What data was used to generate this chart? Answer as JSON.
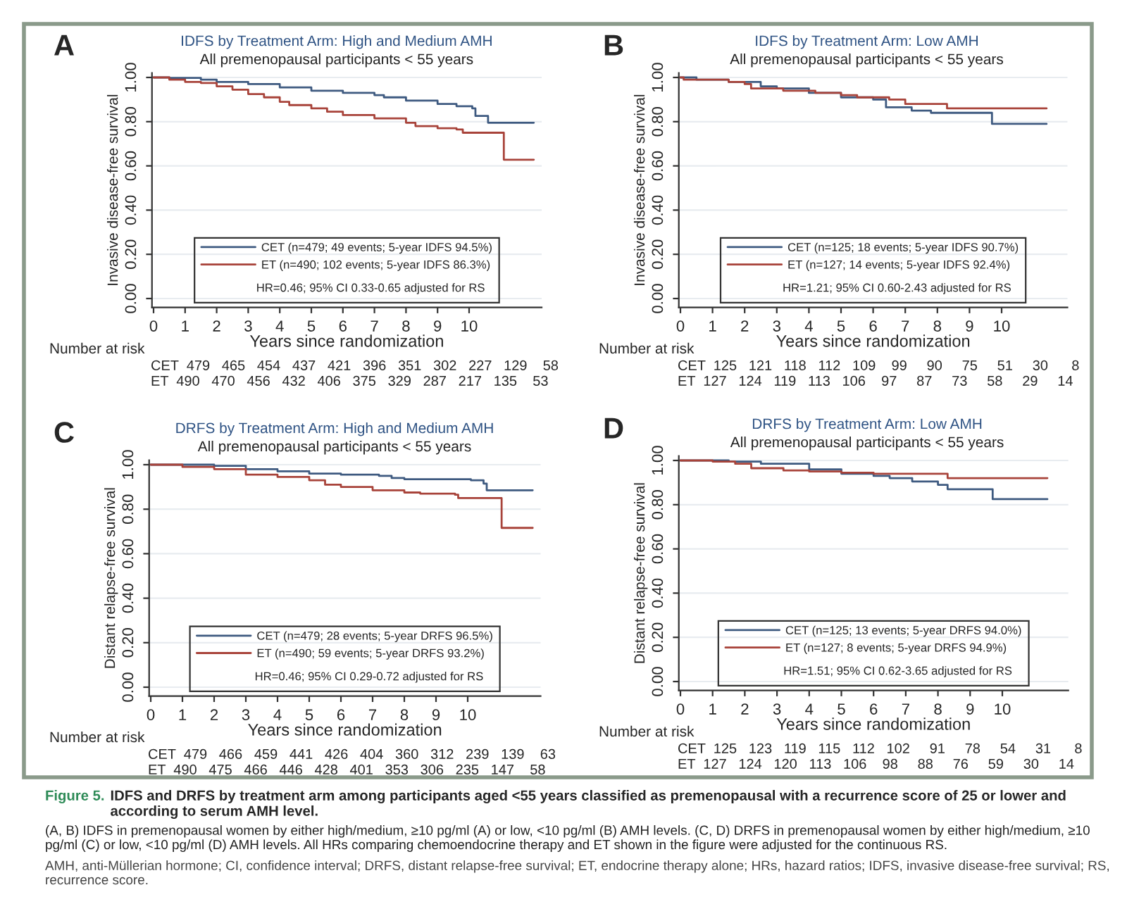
{
  "chart_data": [
    {
      "type": "step",
      "title": "IDFS by Treatment Arm: High and Medium AMH",
      "subtitle": "All premenopausal participants < 55 years",
      "xlabel": "Years since randomization",
      "ylabel": "Invasive disease-free survival",
      "xlim": [
        -0.05,
        12.3
      ],
      "ylim": [
        -0.04,
        1.02
      ],
      "xticks": [
        0,
        1,
        2,
        3,
        4,
        5,
        6,
        7,
        8,
        9,
        10
      ],
      "yticks": [
        {
          "value": 0,
          "label": "0.00"
        },
        {
          "value": 0.2,
          "label": "0.20"
        },
        {
          "value": 0.4,
          "label": "0.40"
        },
        {
          "value": 0.6,
          "label": "0.60"
        },
        {
          "value": 0.8,
          "label": "0.80"
        },
        {
          "value": 1,
          "label": "1.00"
        }
      ],
      "grid": "y",
      "legend": "bottom",
      "series": [
        {
          "name": "CET (n=479; 49 events; 5-year IDFS 94.5%)",
          "color": "#3e5a80",
          "x": [
            0,
            0.5,
            1.5,
            2,
            3,
            4,
            5,
            6,
            7,
            7.3,
            8,
            9,
            9.6,
            10.1,
            10.2,
            10.6,
            12.05
          ],
          "values": [
            1.0,
            0.998,
            0.99,
            0.98,
            0.97,
            0.955,
            0.94,
            0.93,
            0.92,
            0.91,
            0.895,
            0.88,
            0.87,
            0.86,
            0.826,
            0.795,
            0.795
          ]
        },
        {
          "name": "ET (n=490; 102 events; 5-year IDFS 86.3%)",
          "color": "#a8433a",
          "x": [
            0,
            0.5,
            1,
            1.5,
            2,
            2.5,
            3,
            3.5,
            4,
            4.3,
            5,
            5.5,
            6,
            7,
            8,
            8.3,
            9,
            9.6,
            9.8,
            11.1,
            12.05
          ],
          "values": [
            1.0,
            0.99,
            0.98,
            0.975,
            0.96,
            0.945,
            0.925,
            0.91,
            0.89,
            0.875,
            0.86,
            0.845,
            0.83,
            0.815,
            0.795,
            0.78,
            0.77,
            0.765,
            0.75,
            0.628,
            0.628
          ]
        }
      ],
      "annotations": [
        "A",
        "HR=0.46; 95% CI 0.33-0.65 adjusted for RS",
        "Number at risk",
        "CET  479   465   454   437   421   396   351   302   227   129    58",
        "ET  490   470   456   432   406   375   329   287   217   135    53"
      ]
    },
    {
      "type": "step",
      "title": "IDFS by Treatment Arm: Low AMH",
      "subtitle": "All premenopausal participants < 55 years",
      "xlabel": "Years since randomization",
      "ylabel": "Invasive disease-free survival",
      "xlim": [
        -0.05,
        12.05
      ],
      "ylim": [
        -0.04,
        1.02
      ],
      "xticks": [
        0,
        1,
        2,
        3,
        4,
        5,
        6,
        7,
        8,
        9,
        10
      ],
      "yticks": [
        {
          "value": 0,
          "label": "0.00"
        },
        {
          "value": 0.2,
          "label": "0.20"
        },
        {
          "value": 0.4,
          "label": "0.40"
        },
        {
          "value": 0.6,
          "label": "0.60"
        },
        {
          "value": 0.8,
          "label": "0.80"
        },
        {
          "value": 1,
          "label": "1.00"
        }
      ],
      "grid": "y",
      "legend": "bottom",
      "series": [
        {
          "name": "CET (n=125; 18 events; 5-year IDFS 90.7%)",
          "color": "#3e5a80",
          "x": [
            0,
            0.5,
            1.5,
            2.5,
            3,
            4,
            5,
            6,
            6.4,
            7.2,
            7.8,
            9.7,
            11.4
          ],
          "values": [
            1.0,
            0.99,
            0.98,
            0.96,
            0.95,
            0.93,
            0.91,
            0.9,
            0.865,
            0.85,
            0.84,
            0.79,
            0.79
          ]
        },
        {
          "name": "ET (n=127; 14 events; 5-year IDFS 92.4%)",
          "color": "#a8433a",
          "x": [
            0,
            0.1,
            1.5,
            2,
            2.2,
            3.2,
            4.2,
            5,
            5.5,
            6.5,
            7,
            8.3,
            11.4
          ],
          "values": [
            1.0,
            0.99,
            0.98,
            0.97,
            0.95,
            0.94,
            0.93,
            0.92,
            0.91,
            0.9,
            0.88,
            0.86,
            0.86
          ]
        }
      ],
      "annotations": [
        "B",
        "HR=1.21; 95% CI 0.60-2.43 adjusted for RS",
        "Number at risk",
        "CET  125   121   118   112   109    99     90     75     51     30      8",
        "ET  127   124   119   113   106    97     87     73     58     29     14"
      ]
    },
    {
      "type": "step",
      "title": "DRFS by Treatment Arm: High and Medium AMH",
      "subtitle": "All premenopausal participants < 55 years",
      "xlabel": "Years since randomization",
      "ylabel": "Distant relapse-free survival",
      "xlim": [
        -0.05,
        12.3
      ],
      "ylim": [
        -0.04,
        1.02
      ],
      "xticks": [
        0,
        1,
        2,
        3,
        4,
        5,
        6,
        7,
        8,
        9,
        10
      ],
      "yticks": [
        {
          "value": 0,
          "label": "0.00"
        },
        {
          "value": 0.2,
          "label": "0.20"
        },
        {
          "value": 0.4,
          "label": "0.40"
        },
        {
          "value": 0.6,
          "label": "0.60"
        },
        {
          "value": 0.8,
          "label": "0.80"
        },
        {
          "value": 1,
          "label": "1.00"
        }
      ],
      "grid": "y",
      "legend": "bottom",
      "series": [
        {
          "name": "CET (n=479; 28 events; 5-year DRFS 96.5%)",
          "color": "#3e5a80",
          "x": [
            0,
            2,
            3,
            4,
            5,
            6,
            7.2,
            7.6,
            8,
            10.1,
            10.5,
            10.6,
            12.05
          ],
          "values": [
            1.0,
            0.995,
            0.98,
            0.97,
            0.96,
            0.955,
            0.95,
            0.94,
            0.935,
            0.93,
            0.915,
            0.885,
            0.885
          ]
        },
        {
          "name": "ET (n=490; 59 events; 5-year DRFS 93.2%)",
          "color": "#a8433a",
          "x": [
            0,
            1,
            2,
            3,
            4,
            5,
            5.5,
            6,
            7,
            8,
            8.5,
            9.6,
            9.7,
            11.07,
            12.05
          ],
          "values": [
            1.0,
            0.99,
            0.98,
            0.955,
            0.945,
            0.93,
            0.91,
            0.9,
            0.885,
            0.875,
            0.87,
            0.865,
            0.85,
            0.716,
            0.716
          ]
        }
      ],
      "annotations": [
        "C",
        "HR=0.46; 95% CI 0.29-0.72 adjusted for RS",
        "Number at risk",
        "CET  479   466   459   441   426   404   360   312   239   139    63",
        "ET  490   475   466   446   428   401   353   306   235   147    58"
      ]
    },
    {
      "type": "step",
      "title": "DRFS by Treatment Arm: Low AMH",
      "subtitle": "All premenopausal participants < 55 years",
      "xlabel": "Years since randomization",
      "ylabel": "Distant relapse-free survival",
      "xlim": [
        -0.05,
        12.05
      ],
      "ylim": [
        -0.04,
        1.02
      ],
      "xticks": [
        0,
        1,
        2,
        3,
        4,
        5,
        6,
        7,
        8,
        9,
        10
      ],
      "yticks": [
        {
          "value": 0,
          "label": "0.00"
        },
        {
          "value": 0.2,
          "label": "0.20"
        },
        {
          "value": 0.4,
          "label": "0.40"
        },
        {
          "value": 0.6,
          "label": "0.60"
        },
        {
          "value": 0.8,
          "label": "0.80"
        },
        {
          "value": 1,
          "label": "1.00"
        }
      ],
      "grid": "y",
      "legend": "bottom",
      "series": [
        {
          "name": "CET (n=125; 13 events; 5-year DRFS 94.0%)",
          "color": "#3e5a80",
          "x": [
            0,
            1.5,
            2.5,
            4,
            5,
            6,
            6.5,
            7.2,
            8,
            8.3,
            9.7,
            11.4
          ],
          "values": [
            1.0,
            0.995,
            0.985,
            0.96,
            0.94,
            0.93,
            0.92,
            0.905,
            0.89,
            0.87,
            0.825,
            0.825
          ]
        },
        {
          "name": "ET (n=127; 8 events; 5-year DRFS 94.9%)",
          "color": "#a8433a",
          "x": [
            0,
            1,
            1.7,
            2.2,
            3.2,
            4,
            5,
            6,
            8.3,
            11.4
          ],
          "values": [
            1.0,
            0.995,
            0.985,
            0.965,
            0.955,
            0.95,
            0.945,
            0.94,
            0.92,
            0.92
          ]
        }
      ],
      "annotations": [
        "D",
        "HR=1.51; 95% CI 0.62-3.65 adjusted for RS",
        "Number at risk",
        "CET  125   123   119   115   112   102     91     78     54     31      8",
        "ET  127   124   120   113   106    98     88     76     59     30     14"
      ]
    },
    {
      "type": "other",
      "title": "Figure 5.",
      "subtitle": "IDFS and DRFS by treatment arm among participants aged <55 years classified as premenopausal with a recurrence score of 25 or lower and according to serum AMH level.",
      "annotations": [
        "(A, B) IDFS in premenopausal women by either high/medium, ≥10 pg/ml (A) or low, <10 pg/ml (B) AMH levels. (C, D) DRFS in premenopausal women by either high/medium, ≥10 pg/ml (C) or low, <10 pg/ml (D) AMH levels. All HRs comparing chemoendocrine therapy and ET shown in the figure were adjusted for the continuous RS.",
        "AMH, anti-Müllerian hormone; CI, confidence interval; DRFS, distant relapse-free survival; ET, endocrine therapy alone; HRs, hazard ratios; IDFS, invasive disease-free survival; RS, recurrence score."
      ]
    }
  ]
}
